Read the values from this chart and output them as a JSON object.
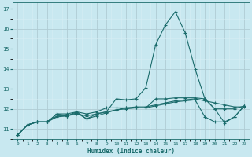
{
  "xlabel": "Humidex (Indice chaleur)",
  "bg_color": "#c8e8f0",
  "line_color": "#1a6b6b",
  "grid_major_color": "#b0ccd4",
  "grid_minor_color": "#d8eef4",
  "xlim": [
    -0.5,
    23.5
  ],
  "ylim": [
    10.5,
    17.3
  ],
  "yticks": [
    11,
    12,
    13,
    14,
    15,
    16,
    17
  ],
  "xticks": [
    0,
    1,
    2,
    3,
    4,
    5,
    6,
    7,
    8,
    9,
    10,
    11,
    12,
    13,
    14,
    15,
    16,
    17,
    18,
    19,
    20,
    21,
    22,
    23
  ],
  "series": [
    [
      10.7,
      11.2,
      11.35,
      11.35,
      11.75,
      11.75,
      11.85,
      11.5,
      11.75,
      11.85,
      12.5,
      12.45,
      12.5,
      13.05,
      15.2,
      16.2,
      16.85,
      15.8,
      14.0,
      12.5,
      12.0,
      11.3,
      11.6,
      12.15
    ],
    [
      10.7,
      11.2,
      11.35,
      11.35,
      11.75,
      11.65,
      11.85,
      11.75,
      11.85,
      12.05,
      12.05,
      12.05,
      12.05,
      12.05,
      12.5,
      12.5,
      12.55,
      12.55,
      12.55,
      12.5,
      12.0,
      12.0,
      12.0,
      12.15
    ],
    [
      10.7,
      11.2,
      11.35,
      11.35,
      11.6,
      11.65,
      11.75,
      11.65,
      11.75,
      11.85,
      11.95,
      12.05,
      12.1,
      12.1,
      12.2,
      12.3,
      12.4,
      12.45,
      12.5,
      12.4,
      12.3,
      12.2,
      12.1,
      12.1
    ],
    [
      10.7,
      11.2,
      11.35,
      11.35,
      11.65,
      11.65,
      11.8,
      11.5,
      11.65,
      11.8,
      11.95,
      12.0,
      12.05,
      12.05,
      12.15,
      12.25,
      12.35,
      12.4,
      12.45,
      11.6,
      11.35,
      11.35,
      11.6,
      12.15
    ]
  ]
}
